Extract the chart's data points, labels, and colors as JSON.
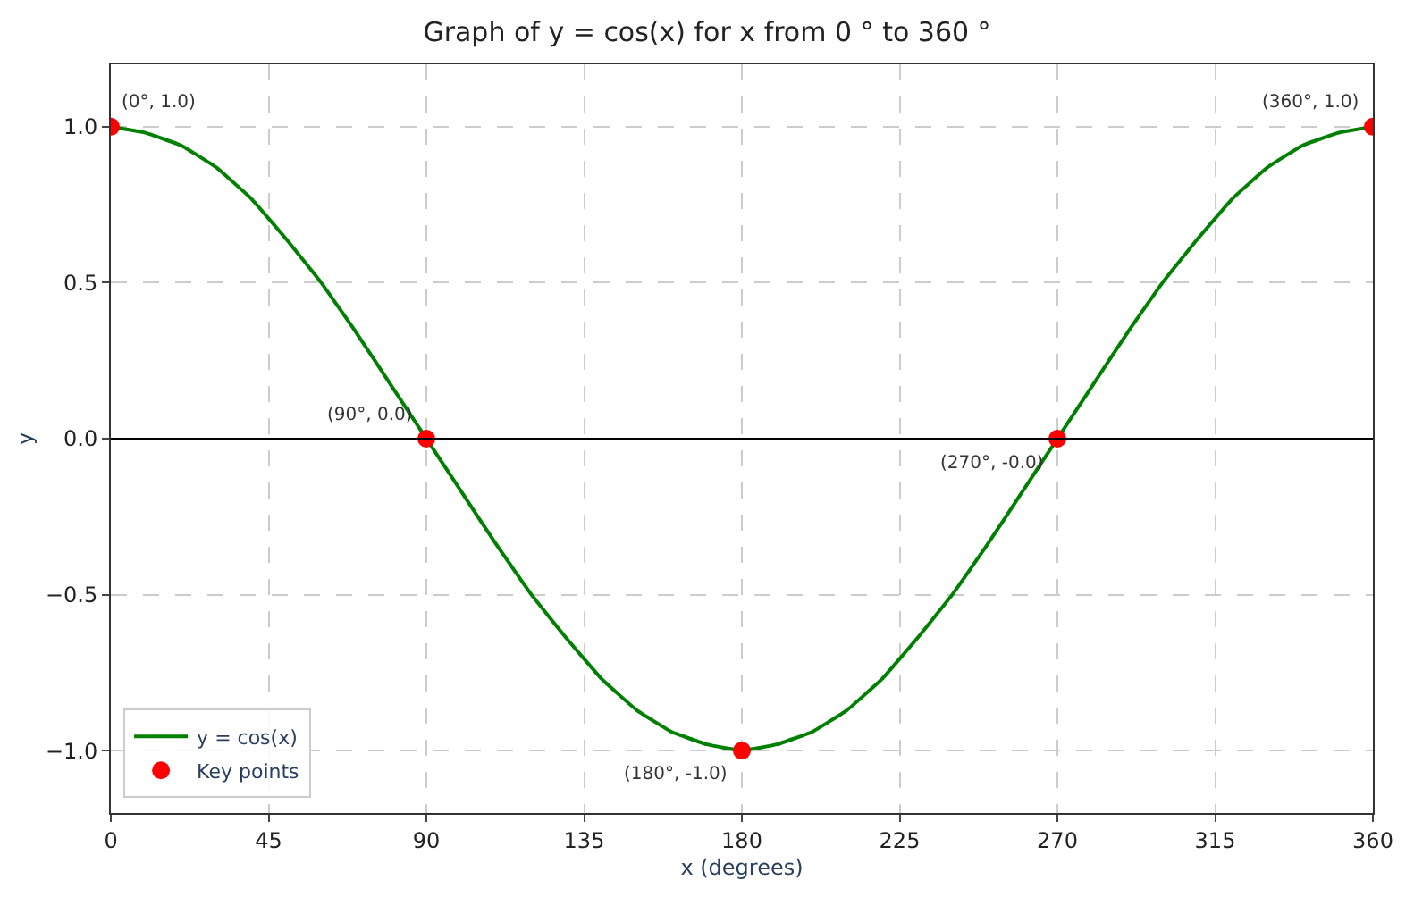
{
  "chart_data": {
    "type": "line",
    "title": "Graph of y = cos(x) for x from 0 ° to 360 °",
    "xlabel": "x (degrees)",
    "ylabel": "y",
    "series": [
      {
        "name": "y = cos(x)",
        "color": "#008000",
        "marker": "none",
        "line_style": "solid",
        "x": [
          0,
          10,
          20,
          30,
          40,
          50,
          60,
          70,
          80,
          90,
          100,
          110,
          120,
          130,
          140,
          150,
          160,
          170,
          180,
          190,
          200,
          210,
          220,
          230,
          240,
          250,
          260,
          270,
          280,
          290,
          300,
          310,
          320,
          330,
          340,
          350,
          360
        ],
        "values": [
          1.0,
          0.98,
          0.94,
          0.87,
          0.77,
          0.64,
          0.5,
          0.34,
          0.17,
          0.0,
          -0.17,
          -0.34,
          -0.5,
          -0.64,
          -0.77,
          -0.87,
          -0.94,
          -0.98,
          -1.0,
          -0.98,
          -0.94,
          -0.87,
          -0.77,
          -0.64,
          -0.5,
          -0.34,
          -0.17,
          0.0,
          0.17,
          0.34,
          0.5,
          0.64,
          0.77,
          0.87,
          0.94,
          0.98,
          1.0
        ]
      },
      {
        "name": "Key points",
        "type": "scatter",
        "color": "#ff0000",
        "marker": "circle",
        "x": [
          0,
          90,
          180,
          270,
          360
        ],
        "values": [
          1.0,
          0.0,
          -1.0,
          0.0,
          1.0
        ]
      }
    ],
    "annotations": [
      {
        "text": "(0°, 1.0)",
        "x": 0,
        "y": 1.0
      },
      {
        "text": "(90°, 0.0)",
        "x": 90,
        "y": 0.0
      },
      {
        "text": "(180°, -1.0)",
        "x": 180,
        "y": -1.0
      },
      {
        "text": "(270°, -0.0)",
        "x": 270,
        "y": 0.0
      },
      {
        "text": "(360°, 1.0)",
        "x": 360,
        "y": 1.0
      }
    ],
    "ref_lines": [
      {
        "axis": "y",
        "value": 0,
        "color": "#000000",
        "line_style": "solid"
      }
    ],
    "xlim": [
      0,
      360
    ],
    "xticks": [
      0,
      45,
      90,
      135,
      180,
      225,
      270,
      315,
      360
    ],
    "ylim": [
      -1.2,
      1.2
    ],
    "yticks": [
      {
        "value": -1,
        "label": "−1.0"
      },
      -0.5,
      {
        "value": 0,
        "label": "0.0"
      },
      0.5,
      {
        "value": 1,
        "label": "1.0"
      }
    ],
    "grid": true,
    "legend": "bottom left"
  }
}
